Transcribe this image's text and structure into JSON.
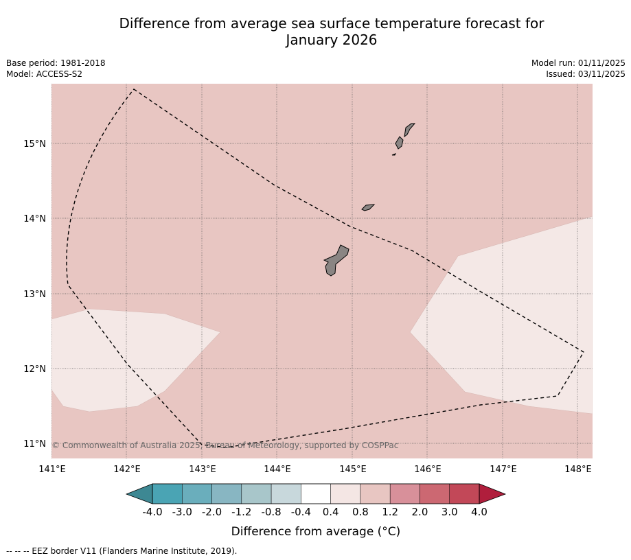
{
  "title_line1": "Difference from average sea surface temperature forecast for",
  "title_line2": "January 2026",
  "base_period": "Base period: 1981-2018",
  "model": "Model: ACCESS-S2",
  "model_run": "Model run: 01/11/2025",
  "issued": "Issued: 03/11/2025",
  "copyright": "© Commonwealth of Australia 2025, Bureau of Meteorology, supported by COSPPac",
  "lon_labels": [
    "141°E",
    "142°E",
    "143°E",
    "144°E",
    "145°E",
    "146°E",
    "147°E",
    "148°E"
  ],
  "lat_labels": [
    "15°N",
    "14°N",
    "13°N",
    "12°N",
    "11°N"
  ],
  "colorbar": {
    "tick_labels": [
      "-4.0",
      "-3.0",
      "-2.0",
      "-1.2",
      "-0.8",
      "-0.4",
      "0.4",
      "0.8",
      "1.2",
      "2.0",
      "3.0",
      "4.0"
    ],
    "colors": [
      "#4aa4b4",
      "#6aaebc",
      "#88b6c2",
      "#a8c6ca",
      "#c8d8dc",
      "#ffffff",
      "#f4e6e4",
      "#e8c6c2",
      "#d8909a",
      "#cc6872",
      "#c24858"
    ],
    "under_color": "#3d8893",
    "over_color": "#b01e3c",
    "label": "Difference from average (°C)"
  },
  "colors": {
    "background_anomaly": "#e8c6c2",
    "light_anomaly": "#f4e8e6",
    "land": "#8a8583"
  },
  "legend_note": "--  --  -- EEZ border V11 (Flanders Marine Institute, 2019)."
}
